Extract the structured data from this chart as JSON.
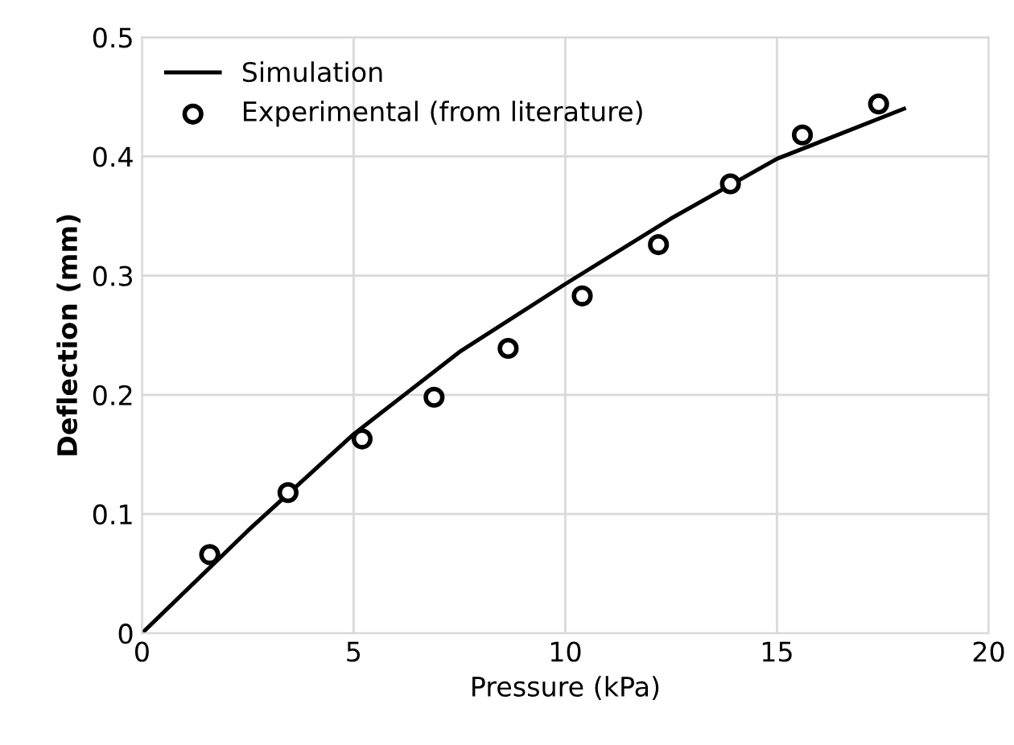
{
  "chart_data": {
    "type": "line",
    "xlabel": "Pressure (kPa)",
    "ylabel": "Deflection (mm)",
    "xlim": [
      0,
      20
    ],
    "xticks": [
      0,
      5,
      10,
      15,
      20
    ],
    "ylim": [
      0,
      0.5
    ],
    "yticks": [
      0,
      0.1,
      0.2,
      0.3,
      0.4,
      0.5
    ],
    "grid": true,
    "legend": "top left",
    "series": [
      {
        "name": "Simulation",
        "color": "#000000",
        "marker": "none",
        "x": [
          0,
          2.5,
          5,
          7.5,
          10,
          12.5,
          15,
          18
        ],
        "values": [
          0,
          0.086,
          0.167,
          0.236,
          0.293,
          0.348,
          0.398,
          0.44
        ]
      },
      {
        "name": "Experimental (from literature)",
        "type": "scatter",
        "color": "#000000",
        "marker": "circle",
        "x": [
          1.6,
          3.45,
          5.2,
          6.9,
          8.65,
          10.4,
          12.2,
          13.9,
          15.6,
          17.4
        ],
        "values": [
          0.066,
          0.118,
          0.163,
          0.198,
          0.239,
          0.283,
          0.326,
          0.377,
          0.418,
          0.444
        ]
      }
    ]
  }
}
